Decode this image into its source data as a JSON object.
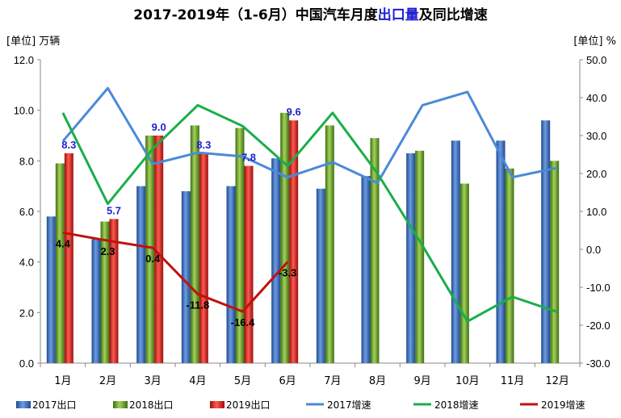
{
  "title": {
    "part1": "2017-2019年（1-6月）中国汽车月度",
    "part2": "出口量",
    "part3": "及同比增速"
  },
  "unit_left": "[单位] 万辆",
  "unit_right": "[单位] %",
  "colors": {
    "bar2017": "#3b6fc4",
    "bar2018": "#6ea82f",
    "bar2019": "#e0201c",
    "line2017": "#4a8ad8",
    "line2018": "#1aae4a",
    "line2019": "#c0110d",
    "label2019": "#1f1fd0"
  },
  "chart_data": {
    "type": "bar+line",
    "categories": [
      "1月",
      "2月",
      "3月",
      "4月",
      "5月",
      "6月",
      "7月",
      "8月",
      "9月",
      "10月",
      "11月",
      "12月"
    ],
    "left_ticks": [
      "0.0",
      "2.0",
      "4.0",
      "6.0",
      "8.0",
      "10.0",
      "12.0"
    ],
    "right_ticks": [
      "-30.0",
      "-20.0",
      "-10.0",
      "0.0",
      "10.0",
      "20.0",
      "30.0",
      "40.0",
      "50.0"
    ],
    "ylim_left": [
      0,
      12
    ],
    "ylim_right": [
      -30,
      50
    ],
    "bars": [
      {
        "name": "2017出口",
        "values": [
          5.8,
          4.9,
          7.0,
          6.8,
          7.0,
          8.1,
          6.9,
          7.4,
          8.3,
          8.8,
          8.8,
          9.6
        ]
      },
      {
        "name": "2018出口",
        "values": [
          7.9,
          5.6,
          9.0,
          9.4,
          9.3,
          9.9,
          9.4,
          8.9,
          8.4,
          7.1,
          7.7,
          8.0
        ]
      },
      {
        "name": "2019出口",
        "values": [
          8.3,
          5.7,
          9.0,
          8.3,
          7.8,
          9.6
        ]
      }
    ],
    "bar_labels_2019": [
      "8.3",
      "5.7",
      "9.0",
      "8.3",
      "7.8",
      "9.6"
    ],
    "lines": [
      {
        "name": "2017增速",
        "values": [
          28.5,
          42.5,
          22.5,
          25.5,
          24.5,
          19.0,
          23.0,
          17.5,
          38.0,
          41.5,
          19.0,
          21.5
        ]
      },
      {
        "name": "2018增速",
        "values": [
          36.0,
          12.0,
          26.5,
          38.0,
          32.5,
          22.0,
          36.0,
          20.0,
          1.0,
          -19.0,
          -12.5,
          -16.5
        ]
      },
      {
        "name": "2019增速",
        "values": [
          4.4,
          2.3,
          0.4,
          -11.8,
          -16.4,
          -3.3
        ]
      }
    ],
    "line_labels_2019": [
      "4.4",
      "2.3",
      "0.4",
      "-11.8",
      "-16.4",
      "-3.3"
    ],
    "legend": [
      "2017出口",
      "2018出口",
      "2019出口",
      "2017增速",
      "2018增速",
      "2019增速"
    ],
    "grid": false,
    "legend_position": "bottom"
  }
}
